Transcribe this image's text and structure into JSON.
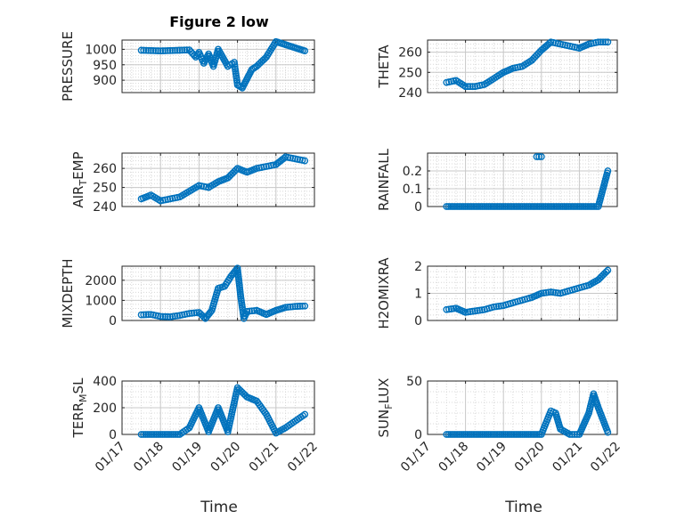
{
  "figure_title": "Figure 2 low",
  "time_label": "Time",
  "date_tick_labels": [
    "01/17",
    "01/18",
    "01/19",
    "01/20",
    "01/21",
    "01/22"
  ],
  "marker_color": "#0072BD",
  "chart_data": [
    {
      "type": "scatter",
      "name": "PRESSURE",
      "title": "Figure 2 low",
      "xlabel": "",
      "ylabel": "PRESSURE",
      "xlim": [
        "2017-01-17",
        "2017-01-22"
      ],
      "ylim": [
        860,
        1030
      ],
      "yticks": [
        900,
        950,
        1000
      ],
      "xtick_labels": [],
      "grid": "on",
      "minor_grid": "on",
      "x": [
        "2017-01-17 12:00",
        "2017-01-17 18:00",
        "2017-01-18 00:00",
        "2017-01-18 06:00",
        "2017-01-18 12:00",
        "2017-01-18 18:00",
        "2017-01-18 22:00",
        "2017-01-19 00:00",
        "2017-01-19 03:00",
        "2017-01-19 06:00",
        "2017-01-19 09:00",
        "2017-01-19 12:00",
        "2017-01-19 18:00",
        "2017-01-19 22:00",
        "2017-01-20 00:00",
        "2017-01-20 03:00",
        "2017-01-20 06:00",
        "2017-01-20 09:00",
        "2017-01-20 12:00",
        "2017-01-20 18:00",
        "2017-01-21 00:00",
        "2017-01-21 06:00",
        "2017-01-21 12:00",
        "2017-01-21 18:00"
      ],
      "y": [
        997,
        996,
        995,
        996,
        997,
        998,
        975,
        990,
        955,
        985,
        945,
        1000,
        945,
        958,
        885,
        875,
        905,
        935,
        945,
        975,
        1025,
        1015,
        1005,
        995
      ]
    },
    {
      "type": "scatter",
      "name": "THETA",
      "xlabel": "",
      "ylabel": "THETA",
      "xlim": [
        "2017-01-17",
        "2017-01-22"
      ],
      "ylim": [
        240,
        266
      ],
      "yticks": [
        240,
        250,
        260
      ],
      "xtick_labels": [],
      "grid": "on",
      "minor_grid": "on",
      "x": [
        "2017-01-17 12:00",
        "2017-01-17 18:00",
        "2017-01-18 00:00",
        "2017-01-18 06:00",
        "2017-01-18 12:00",
        "2017-01-18 18:00",
        "2017-01-19 00:00",
        "2017-01-19 06:00",
        "2017-01-19 12:00",
        "2017-01-19 18:00",
        "2017-01-20 00:00",
        "2017-01-20 06:00",
        "2017-01-20 12:00",
        "2017-01-20 18:00",
        "2017-01-21 00:00",
        "2017-01-21 06:00",
        "2017-01-21 12:00",
        "2017-01-21 18:00"
      ],
      "y": [
        245,
        246,
        243,
        243,
        244,
        247,
        250,
        252,
        253,
        256,
        261,
        265,
        264,
        263,
        262,
        264,
        265,
        265
      ]
    },
    {
      "type": "scatter",
      "name": "AIR_TEMP",
      "xlabel": "",
      "ylabel": "AIR_TEMP",
      "xlim": [
        "2017-01-17",
        "2017-01-22"
      ],
      "ylim": [
        240,
        268
      ],
      "yticks": [
        240,
        250,
        260
      ],
      "xtick_labels": [],
      "grid": "on",
      "minor_grid": "on",
      "x": [
        "2017-01-17 12:00",
        "2017-01-17 18:00",
        "2017-01-18 00:00",
        "2017-01-18 06:00",
        "2017-01-18 12:00",
        "2017-01-18 18:00",
        "2017-01-19 00:00",
        "2017-01-19 06:00",
        "2017-01-19 12:00",
        "2017-01-19 18:00",
        "2017-01-20 00:00",
        "2017-01-20 06:00",
        "2017-01-20 12:00",
        "2017-01-20 18:00",
        "2017-01-21 00:00",
        "2017-01-21 06:00",
        "2017-01-21 12:00",
        "2017-01-21 18:00"
      ],
      "y": [
        244,
        246,
        243,
        244,
        245,
        248,
        251,
        250,
        253,
        255,
        260,
        258,
        260,
        261,
        262,
        266,
        265,
        264
      ]
    },
    {
      "type": "scatter",
      "name": "RAINFALL",
      "xlabel": "",
      "ylabel": "RAINFALL",
      "xlim": [
        "2017-01-17",
        "2017-01-22"
      ],
      "ylim": [
        0,
        0.3
      ],
      "yticks": [
        0,
        0.1,
        0.2
      ],
      "xtick_labels": [],
      "grid": "on",
      "minor_grid": "on",
      "x": [
        "2017-01-17 12:00",
        "2017-01-18 00:00",
        "2017-01-18 12:00",
        "2017-01-19 00:00",
        "2017-01-19 12:00",
        "2017-01-19 20:00",
        "2017-01-20 00:00",
        "2017-01-20 12:00",
        "2017-01-21 00:00",
        "2017-01-21 12:00",
        "2017-01-21 18:00",
        "2017-01-19 21:00",
        "2017-01-20 00:00"
      ],
      "y": [
        0,
        0,
        0,
        0,
        0,
        0,
        0,
        0,
        0,
        0,
        0.2,
        0.28,
        0.28
      ]
    },
    {
      "type": "scatter",
      "name": "MIXDEPTH",
      "xlabel": "",
      "ylabel": "MIXDEPTH",
      "xlim": [
        "2017-01-17",
        "2017-01-22"
      ],
      "ylim": [
        0,
        2700
      ],
      "yticks": [
        0,
        1000,
        2000
      ],
      "xtick_labels": [],
      "grid": "on",
      "minor_grid": "on",
      "x": [
        "2017-01-17 12:00",
        "2017-01-17 18:00",
        "2017-01-18 00:00",
        "2017-01-18 06:00",
        "2017-01-18 12:00",
        "2017-01-18 18:00",
        "2017-01-19 00:00",
        "2017-01-19 04:00",
        "2017-01-19 08:00",
        "2017-01-19 12:00",
        "2017-01-19 16:00",
        "2017-01-19 20:00",
        "2017-01-20 00:00",
        "2017-01-20 02:00",
        "2017-01-20 04:00",
        "2017-01-20 06:00",
        "2017-01-20 12:00",
        "2017-01-20 18:00",
        "2017-01-21 00:00",
        "2017-01-21 06:00",
        "2017-01-21 12:00",
        "2017-01-21 18:00"
      ],
      "y": [
        280,
        300,
        200,
        180,
        250,
        350,
        400,
        100,
        500,
        1600,
        1700,
        2200,
        2600,
        1200,
        100,
        450,
        500,
        300,
        500,
        650,
        700,
        720
      ]
    },
    {
      "type": "scatter",
      "name": "H2OMIXRA",
      "xlabel": "",
      "ylabel": "H2OMIXRA",
      "xlim": [
        "2017-01-17",
        "2017-01-22"
      ],
      "ylim": [
        0,
        2
      ],
      "yticks": [
        0,
        1,
        2
      ],
      "xtick_labels": [],
      "grid": "on",
      "minor_grid": "on",
      "x": [
        "2017-01-17 12:00",
        "2017-01-17 18:00",
        "2017-01-18 00:00",
        "2017-01-18 06:00",
        "2017-01-18 12:00",
        "2017-01-18 18:00",
        "2017-01-19 00:00",
        "2017-01-19 06:00",
        "2017-01-19 12:00",
        "2017-01-19 18:00",
        "2017-01-20 00:00",
        "2017-01-20 06:00",
        "2017-01-20 12:00",
        "2017-01-20 18:00",
        "2017-01-21 00:00",
        "2017-01-21 06:00",
        "2017-01-21 12:00",
        "2017-01-21 18:00"
      ],
      "y": [
        0.4,
        0.45,
        0.3,
        0.35,
        0.4,
        0.5,
        0.55,
        0.65,
        0.75,
        0.85,
        1.0,
        1.05,
        1.0,
        1.1,
        1.2,
        1.3,
        1.5,
        1.85
      ]
    },
    {
      "type": "scatter",
      "name": "TERR_MSL",
      "xlabel": "Time",
      "ylabel": "TERR_MSL",
      "xlim": [
        "2017-01-17",
        "2017-01-22"
      ],
      "ylim": [
        0,
        400
      ],
      "yticks": [
        0,
        200,
        400
      ],
      "grid": "on",
      "minor_grid": "on",
      "x": [
        "2017-01-17 12:00",
        "2017-01-18 00:00",
        "2017-01-18 12:00",
        "2017-01-18 18:00",
        "2017-01-19 00:00",
        "2017-01-19 06:00",
        "2017-01-19 12:00",
        "2017-01-19 18:00",
        "2017-01-20 00:00",
        "2017-01-20 06:00",
        "2017-01-20 12:00",
        "2017-01-20 18:00",
        "2017-01-21 00:00",
        "2017-01-21 06:00",
        "2017-01-21 12:00",
        "2017-01-21 18:00"
      ],
      "y": [
        0,
        0,
        0,
        50,
        200,
        20,
        200,
        20,
        350,
        280,
        250,
        150,
        10,
        50,
        100,
        150
      ]
    },
    {
      "type": "scatter",
      "name": "SUN_FLUX",
      "xlabel": "Time",
      "ylabel": "SUN_FLUX",
      "xlim": [
        "2017-01-17",
        "2017-01-22"
      ],
      "ylim": [
        0,
        50
      ],
      "yticks": [
        0,
        50
      ],
      "grid": "on",
      "minor_grid": "on",
      "x": [
        "2017-01-17 12:00",
        "2017-01-18 00:00",
        "2017-01-18 12:00",
        "2017-01-19 00:00",
        "2017-01-19 12:00",
        "2017-01-20 00:00",
        "2017-01-20 06:00",
        "2017-01-20 09:00",
        "2017-01-20 12:00",
        "2017-01-20 18:00",
        "2017-01-21 00:00",
        "2017-01-21 06:00",
        "2017-01-21 09:00",
        "2017-01-21 12:00",
        "2017-01-21 18:00"
      ],
      "y": [
        0,
        0,
        0,
        0,
        0,
        0,
        22,
        20,
        5,
        0,
        0,
        20,
        38,
        25,
        2
      ]
    }
  ]
}
